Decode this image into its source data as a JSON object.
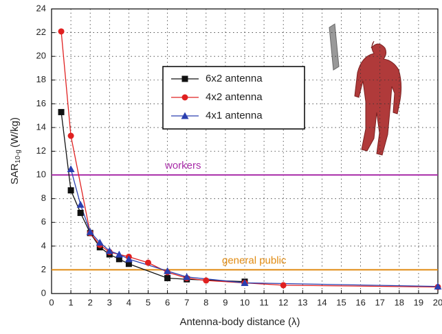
{
  "chart_data": {
    "type": "line",
    "xlabel": "Antenna-body distance (λ)",
    "ylabel": "SAR",
    "ylabel_sub": "10-g",
    "ylabel_unit": "(W/kg)",
    "xlim": [
      0,
      20
    ],
    "xticks": [
      0,
      1,
      2,
      3,
      4,
      5,
      6,
      7,
      8,
      9,
      10,
      11,
      12,
      13,
      14,
      15,
      16,
      17,
      18,
      19,
      20
    ],
    "ylim": [
      0,
      24
    ],
    "yticks": [
      0,
      2,
      4,
      6,
      8,
      10,
      12,
      14,
      16,
      18,
      20,
      22,
      24
    ],
    "grid": true,
    "series": [
      {
        "name": "6x2 antenna",
        "color": "#111111",
        "marker": "square",
        "x": [
          0.5,
          1,
          1.5,
          2,
          2.5,
          3,
          3.5,
          4,
          6,
          7,
          10
        ],
        "values": [
          15.3,
          8.7,
          6.8,
          5.1,
          3.9,
          3.3,
          2.9,
          2.5,
          1.3,
          1.2,
          1.0
        ]
      },
      {
        "name": "4x2 antenna",
        "color": "#e02020",
        "marker": "circle",
        "x": [
          0.5,
          1,
          2,
          2.5,
          3,
          4,
          5,
          6,
          7,
          8,
          10,
          12,
          20
        ],
        "values": [
          22.1,
          13.3,
          5.1,
          4.1,
          3.5,
          3.1,
          2.6,
          1.8,
          1.3,
          1.1,
          0.9,
          0.7,
          0.55
        ]
      },
      {
        "name": "4x1 antenna",
        "color": "#2a3fb0",
        "marker": "triangle",
        "x": [
          1,
          1.5,
          2,
          2.5,
          3,
          3.5,
          4,
          6,
          7,
          10,
          20
        ],
        "values": [
          10.5,
          7.5,
          5.2,
          4.3,
          3.6,
          3.3,
          2.9,
          1.9,
          1.4,
          0.9,
          0.6
        ]
      }
    ],
    "reference_lines": [
      {
        "label": "workers",
        "value": 10,
        "color": "#a82ca8"
      },
      {
        "label": "general public",
        "value": 2,
        "color": "#e08a10"
      }
    ]
  }
}
